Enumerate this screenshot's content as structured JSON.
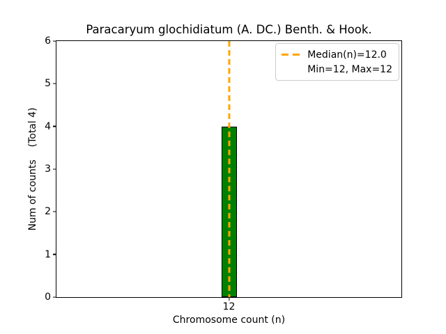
{
  "chart_data": {
    "type": "bar",
    "title": "Paracaryum glochidiatum (A. DC.) Benth. & Hook.",
    "categories": [
      "12"
    ],
    "values": [
      4
    ],
    "total_counts": 4,
    "xlabel": "Chromosome count (n)",
    "ylabel": "Num of counts    (Total 4)",
    "ylim": [
      0,
      6
    ],
    "yticks": [
      0,
      1,
      2,
      3,
      4,
      5,
      6
    ],
    "median_n": "12.0",
    "min_n": 12,
    "max_n": 12,
    "grid": false,
    "colors": {
      "bar_fill": "#008000",
      "bar_edge": "#000000",
      "median_line": "#ffa500",
      "legend_border": "#cccccc",
      "axes": "#000000"
    },
    "legend": {
      "position": "upper right",
      "entries": [
        {
          "label": "Median(n)=12.0",
          "handle": "orange-dashed-line"
        },
        {
          "label": "Min=12, Max=12",
          "handle": "none"
        }
      ]
    }
  }
}
